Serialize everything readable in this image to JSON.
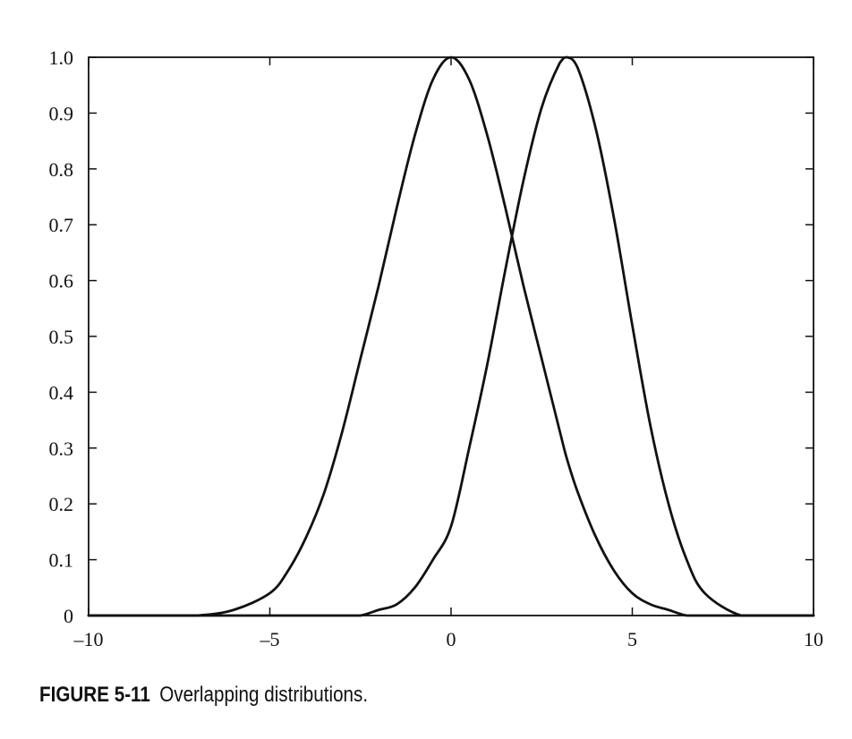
{
  "caption": {
    "label": "FIGURE 5-11",
    "text": "Overlapping distributions."
  },
  "chart_data": {
    "type": "line",
    "title": "",
    "xlabel": "",
    "ylabel": "",
    "xlim": [
      -10,
      10
    ],
    "ylim": [
      0,
      1.0
    ],
    "x_ticks": [
      -10,
      -5,
      0,
      5,
      10
    ],
    "x_tick_labels": [
      "–10",
      "–5",
      "0",
      "5",
      "10"
    ],
    "y_ticks": [
      0,
      0.1,
      0.2,
      0.3,
      0.4,
      0.5,
      0.6,
      0.7,
      0.8,
      0.9,
      1.0
    ],
    "y_tick_labels": [
      "0",
      "0.1",
      "0.2",
      "0.3",
      "0.4",
      "0.5",
      "0.6",
      "0.7",
      "0.8",
      "0.9",
      "1.0"
    ],
    "grid": false,
    "legend": "none",
    "line_color": "#111111",
    "x": [
      -10,
      -9,
      -8,
      -7,
      -6,
      -5,
      -4.5,
      -4,
      -3.5,
      -3,
      -2.5,
      -2,
      -1.5,
      -1,
      -0.5,
      0,
      0.5,
      1,
      1.5,
      2,
      2.5,
      3,
      3.2,
      3.5,
      4,
      4.5,
      5,
      5.5,
      6,
      6.5,
      7,
      8,
      9,
      10
    ],
    "series": [
      {
        "values": [
          0.0,
          0.0,
          0.0,
          0.0,
          0.01,
          0.04,
          0.08,
          0.14,
          0.22,
          0.33,
          0.46,
          0.59,
          0.73,
          0.86,
          0.96,
          1.0,
          0.96,
          0.86,
          0.73,
          0.59,
          0.46,
          0.33,
          0.28,
          0.22,
          0.14,
          0.08,
          0.04,
          0.02,
          0.01,
          0.0,
          0.0,
          0.0,
          0.0,
          0.0
        ]
      },
      {
        "values": [
          0.0,
          0.0,
          0.0,
          0.0,
          0.0,
          0.0,
          0.0,
          0.0,
          0.0,
          0.0,
          0.0,
          0.01,
          0.02,
          0.05,
          0.1,
          0.16,
          0.3,
          0.45,
          0.62,
          0.78,
          0.91,
          0.99,
          1.0,
          0.98,
          0.87,
          0.71,
          0.52,
          0.34,
          0.2,
          0.1,
          0.04,
          0.0,
          0.0,
          0.0
        ]
      }
    ]
  }
}
